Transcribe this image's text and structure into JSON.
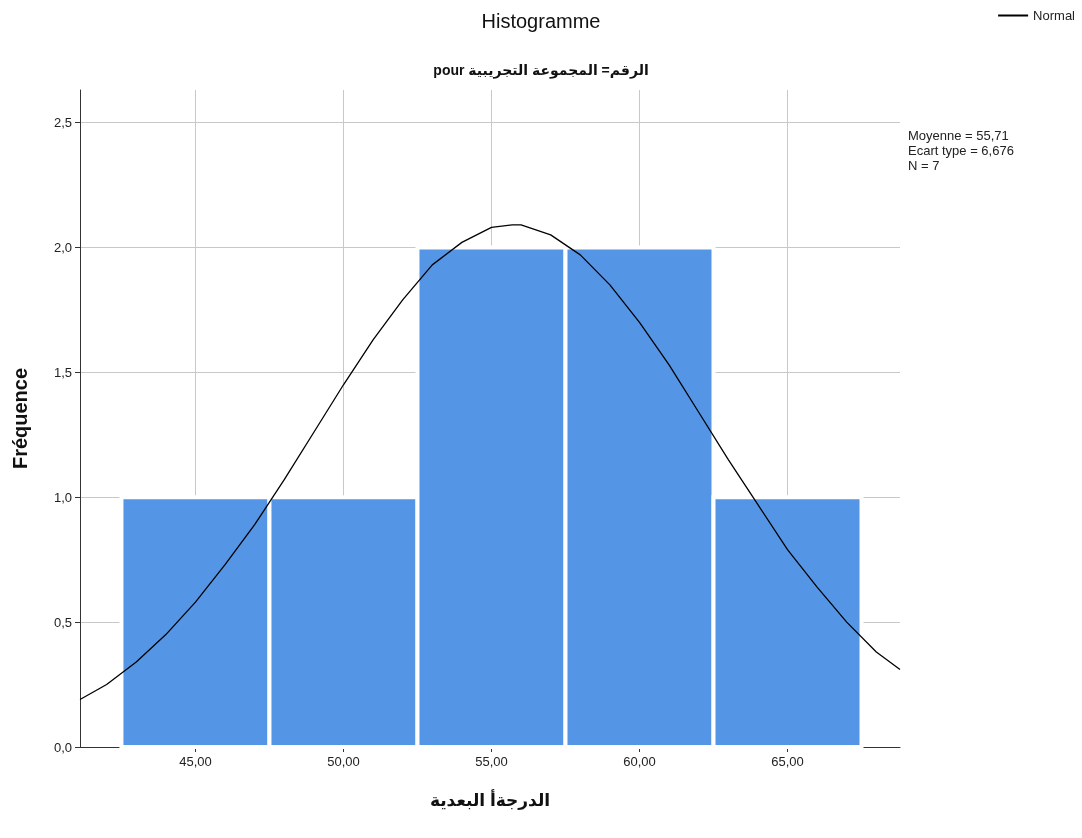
{
  "chart_data": {
    "type": "histogram",
    "title": "Histogramme",
    "subtitle": "pour الرقم= المجموعة التجريبية",
    "xlabel": "الدرجةأ البعدية",
    "ylabel": "Fréquence",
    "bins": [
      42.5,
      47.5,
      52.5,
      57.5,
      62.5,
      67.5
    ],
    "values": [
      1,
      1,
      2,
      2,
      1
    ],
    "color": "#5595e5",
    "series": [
      {
        "name": "Normal",
        "type": "line",
        "color": "#000000",
        "x": [
          41.1,
          42,
          43,
          44,
          45,
          46,
          47,
          48,
          49,
          50,
          51,
          52,
          53,
          54,
          55,
          55.7,
          56,
          57,
          58,
          59,
          60,
          61,
          62,
          63,
          64,
          65,
          66,
          67,
          68,
          68.8
        ],
        "values": [
          0.19,
          0.25,
          0.34,
          0.45,
          0.58,
          0.73,
          0.89,
          1.07,
          1.26,
          1.45,
          1.63,
          1.79,
          1.93,
          2.02,
          2.08,
          2.09,
          2.09,
          2.05,
          1.97,
          1.85,
          1.7,
          1.53,
          1.34,
          1.15,
          0.97,
          0.79,
          0.64,
          0.5,
          0.38,
          0.31
        ]
      }
    ],
    "xlim": [
      41.1,
      68.8
    ],
    "xticks": [
      {
        "value": 45,
        "label": "45,00"
      },
      {
        "value": 50,
        "label": "50,00"
      },
      {
        "value": 55,
        "label": "55,00"
      },
      {
        "value": 60,
        "label": "60,00"
      },
      {
        "value": 65,
        "label": "65,00"
      }
    ],
    "ylim": [
      0,
      2.63
    ],
    "yticks": [
      {
        "value": 0,
        "label": "0,0"
      },
      {
        "value": 0.5,
        "label": "0,5"
      },
      {
        "value": 1,
        "label": "1,0"
      },
      {
        "value": 1.5,
        "label": "1,5"
      },
      {
        "value": 2,
        "label": "2,0"
      },
      {
        "value": 2.5,
        "label": "2,5"
      }
    ],
    "annotations": [
      "Moyenne = 55,71",
      "Ecart type = 6,676",
      "N = 7"
    ],
    "grid": true,
    "legend": "top right",
    "marker": "none",
    "line_style": "solid"
  }
}
